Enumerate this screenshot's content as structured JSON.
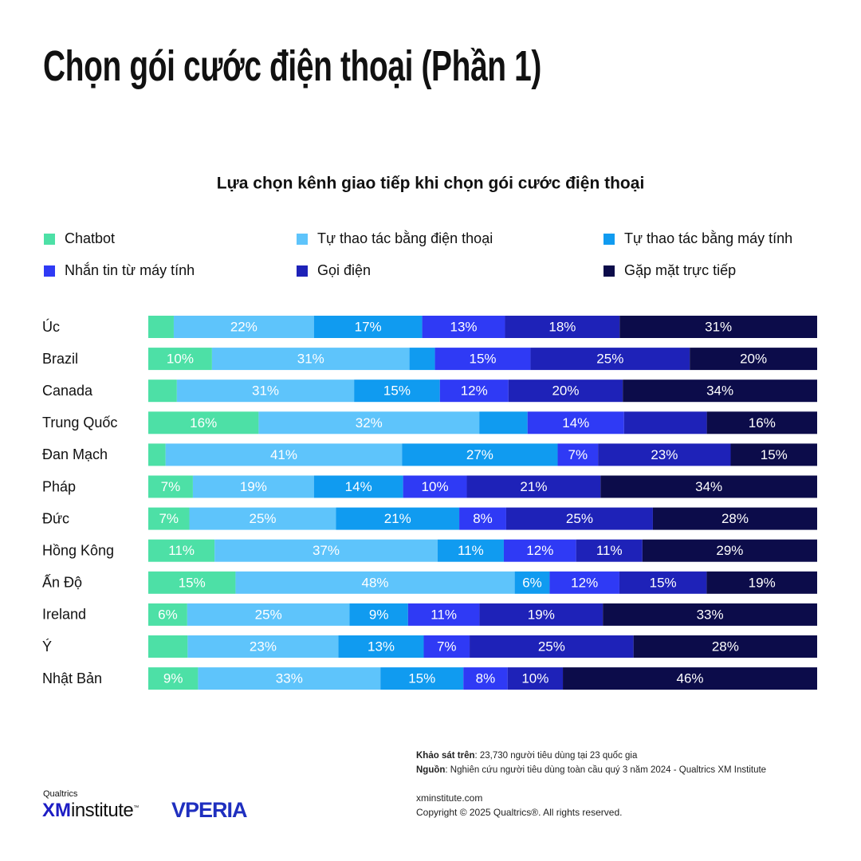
{
  "header": {
    "title": "Chọn gói cước điện thoại (Phần 1)"
  },
  "chart_data": {
    "type": "stacked-bar-100",
    "orientation": "horizontal",
    "title": "Lựa chọn kênh giao tiếp khi chọn gói cước điện thoại",
    "categories": [
      "Úc",
      "Brazil",
      "Canada",
      "Trung Quốc",
      "Đan Mạch",
      "Pháp",
      "Đức",
      "Hồng Kông",
      "Ấn Độ",
      "Ireland",
      "Ý",
      "Nhật Bản"
    ],
    "series": [
      {
        "name": "Chatbot",
        "color": "#4de0a6",
        "label_color": "#ffffff",
        "values": [
          4,
          10,
          5,
          16,
          3,
          7,
          7,
          11,
          15,
          6,
          6,
          9
        ],
        "value_labels": [
          null,
          "10%",
          null,
          "16%",
          null,
          "7%",
          "7%",
          "11%",
          "15%",
          "6%",
          null,
          "9%"
        ]
      },
      {
        "name": "Tự thao tác bằng điện thoại",
        "color": "#5ec4fb",
        "label_color": "#ffffff",
        "values": [
          22,
          31,
          31,
          32,
          41,
          19,
          25,
          37,
          48,
          25,
          23,
          33
        ],
        "value_labels": [
          "22%",
          "31%",
          "31%",
          "32%",
          "41%",
          "19%",
          "25%",
          "37%",
          "48%",
          "25%",
          "23%",
          "33%"
        ]
      },
      {
        "name": "Tự thao tác bằng máy tính",
        "color": "#109bf0",
        "label_color": "#ffffff",
        "values": [
          17,
          4,
          15,
          7,
          27,
          14,
          21,
          11,
          6,
          9,
          13,
          15
        ],
        "value_labels": [
          "17%",
          null,
          "15%",
          null,
          "27%",
          "14%",
          "21%",
          "11%",
          "6%",
          "9%",
          "13%",
          "15%"
        ]
      },
      {
        "name": "Nhắn tin từ máy tính",
        "color": "#2f3af5",
        "label_color": "#ffffff",
        "values": [
          13,
          15,
          12,
          14,
          7,
          10,
          8,
          12,
          12,
          11,
          7,
          8
        ],
        "value_labels": [
          "13%",
          "15%",
          "12%",
          "14%",
          "7%",
          "10%",
          "8%",
          "12%",
          "12%",
          "11%",
          "7%",
          "8%"
        ]
      },
      {
        "name": "Gọi điện",
        "color": "#1e22b8",
        "label_color": "#ffffff",
        "values": [
          18,
          25,
          20,
          12,
          23,
          21,
          25,
          11,
          15,
          19,
          25,
          10
        ],
        "value_labels": [
          "18%",
          "25%",
          "20%",
          null,
          "23%",
          "21%",
          "25%",
          "11%",
          "15%",
          "19%",
          "25%",
          "10%"
        ]
      },
      {
        "name": "Gặp mặt trực tiếp",
        "color": "#0c0c4a",
        "label_color": "#ffffff",
        "values": [
          31,
          20,
          34,
          16,
          15,
          34,
          28,
          29,
          19,
          33,
          28,
          46
        ],
        "value_labels": [
          "31%",
          "20%",
          "34%",
          "16%",
          "15%",
          "34%",
          "28%",
          "29%",
          "19%",
          "33%",
          "28%",
          "46%"
        ]
      }
    ]
  },
  "footer": {
    "survey_label": "Khảo sát trên",
    "survey_text": ": 23,730 người tiêu dùng tại 23 quốc gia",
    "source_label": "Nguồn",
    "source_text": ": Nghiên cứu người tiêu dùng toàn cầu quý 3 năm 2024 - Qualtrics XM Institute",
    "website": "xminstitute.com",
    "copyright": "Copyright © 2025 Qualtrics®. All rights reserved.",
    "logo_small": "Qualtrics",
    "logo_xm": "XM",
    "logo_institute": "institute",
    "logo_tm": "™",
    "logo_vperia": "VPERIA"
  }
}
